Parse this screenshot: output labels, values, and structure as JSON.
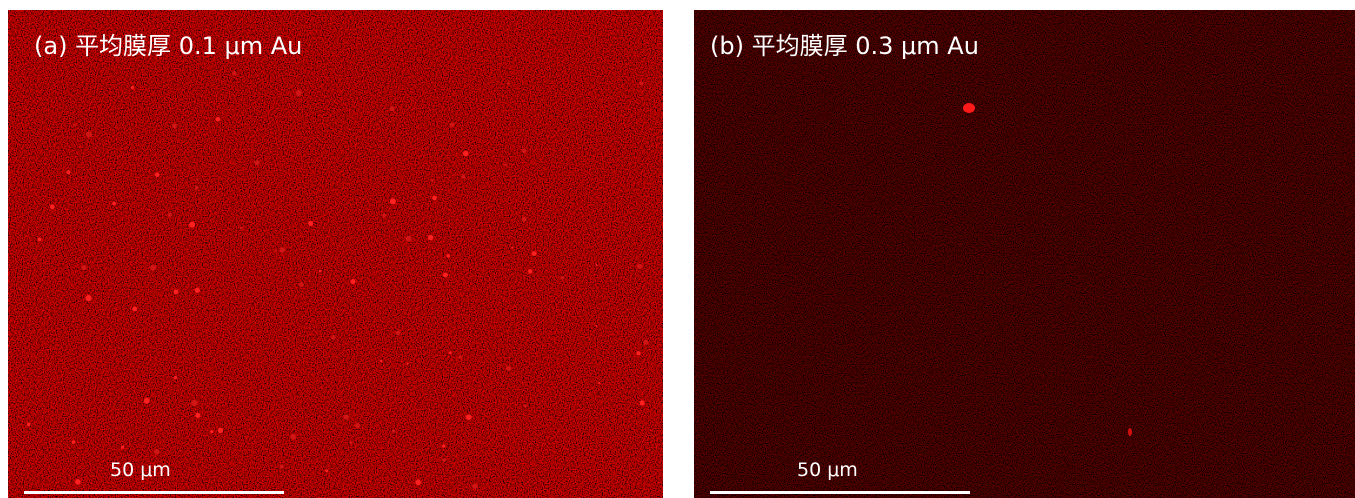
{
  "panels": [
    {
      "label": "(a) 平均膜厚 0.1 μm Au",
      "scale_bar": "50 μm"
    },
    {
      "label": "(b) 平均膜厚 0.3 μm Au",
      "scale_bar": "50 μm"
    }
  ]
}
